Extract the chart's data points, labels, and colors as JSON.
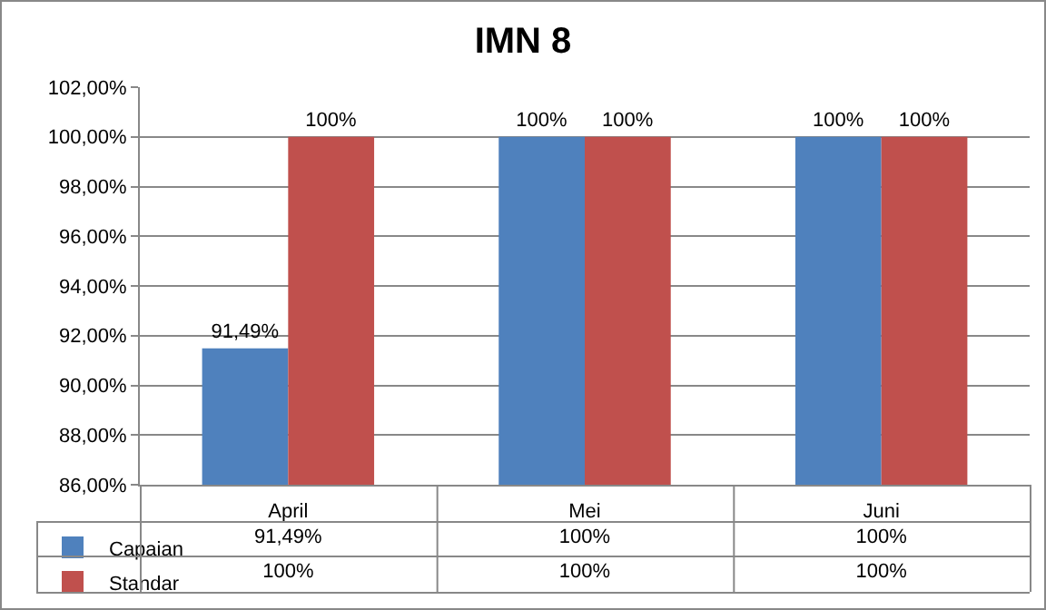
{
  "chart_data": {
    "type": "bar",
    "title": "IMN 8",
    "categories": [
      "April",
      "Mei",
      "Juni"
    ],
    "series": [
      {
        "name": "Capaian",
        "color": "#4f81bd",
        "values": [
          91.49,
          100,
          100
        ],
        "value_labels": [
          "91,49%",
          "100%",
          "100%"
        ]
      },
      {
        "name": "Standar",
        "color": "#c0504d",
        "values": [
          100,
          100,
          100
        ],
        "value_labels": [
          "100%",
          "100%",
          "100%"
        ]
      }
    ],
    "ylim": [
      86,
      102
    ],
    "yticks": [
      {
        "value": 86,
        "label": "86,00%"
      },
      {
        "value": 88,
        "label": "88,00%"
      },
      {
        "value": 90,
        "label": "90,00%"
      },
      {
        "value": 92,
        "label": "92,00%"
      },
      {
        "value": 94,
        "label": "94,00%"
      },
      {
        "value": 96,
        "label": "96,00%"
      },
      {
        "value": 98,
        "label": "98,00%"
      },
      {
        "value": 100,
        "label": "100,00%"
      },
      {
        "value": 102,
        "label": "102,00%"
      }
    ],
    "grid": "y",
    "legend": "bottom left"
  }
}
